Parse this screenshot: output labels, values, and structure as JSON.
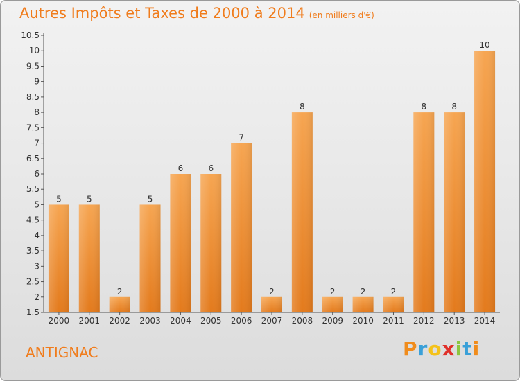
{
  "header": {
    "title": "Autres Impôts et Taxes de 2000 à 2014",
    "subtitle": "(en milliers d'€)"
  },
  "footer": {
    "commune": "ANTIGNAC",
    "brand": {
      "letters": [
        "P",
        "r",
        "o",
        "x",
        "i",
        "t",
        "i"
      ],
      "colors": [
        "#f08c1c",
        "#3aa0d8",
        "#f4c21a",
        "#e0302a",
        "#8cc63f",
        "#3aa0d8",
        "#f08c1c"
      ]
    }
  },
  "colors": {
    "bar_top": "#f6a551",
    "bar_bottom": "#e37a1c",
    "accent": "#f07c1c"
  },
  "chart_data": {
    "type": "bar",
    "title": "Autres Impôts et Taxes de 2000 à 2014",
    "subtitle": "(en milliers d'€)",
    "categories": [
      "2000",
      "2001",
      "2002",
      "2003",
      "2004",
      "2005",
      "2006",
      "2007",
      "2008",
      "2009",
      "2010",
      "2011",
      "2012",
      "2013",
      "2014"
    ],
    "values": [
      5,
      5,
      2,
      5,
      6,
      6,
      7,
      2,
      8,
      2,
      2,
      2,
      8,
      8,
      10
    ],
    "ylim": [
      1.5,
      10.5
    ],
    "yticks": [
      1.5,
      2,
      2.5,
      3,
      3.5,
      4,
      4.5,
      5,
      5.5,
      6,
      6.5,
      7,
      7.5,
      8,
      8.5,
      9,
      9.5,
      10,
      10.5
    ],
    "grid": false,
    "legend": "none"
  }
}
